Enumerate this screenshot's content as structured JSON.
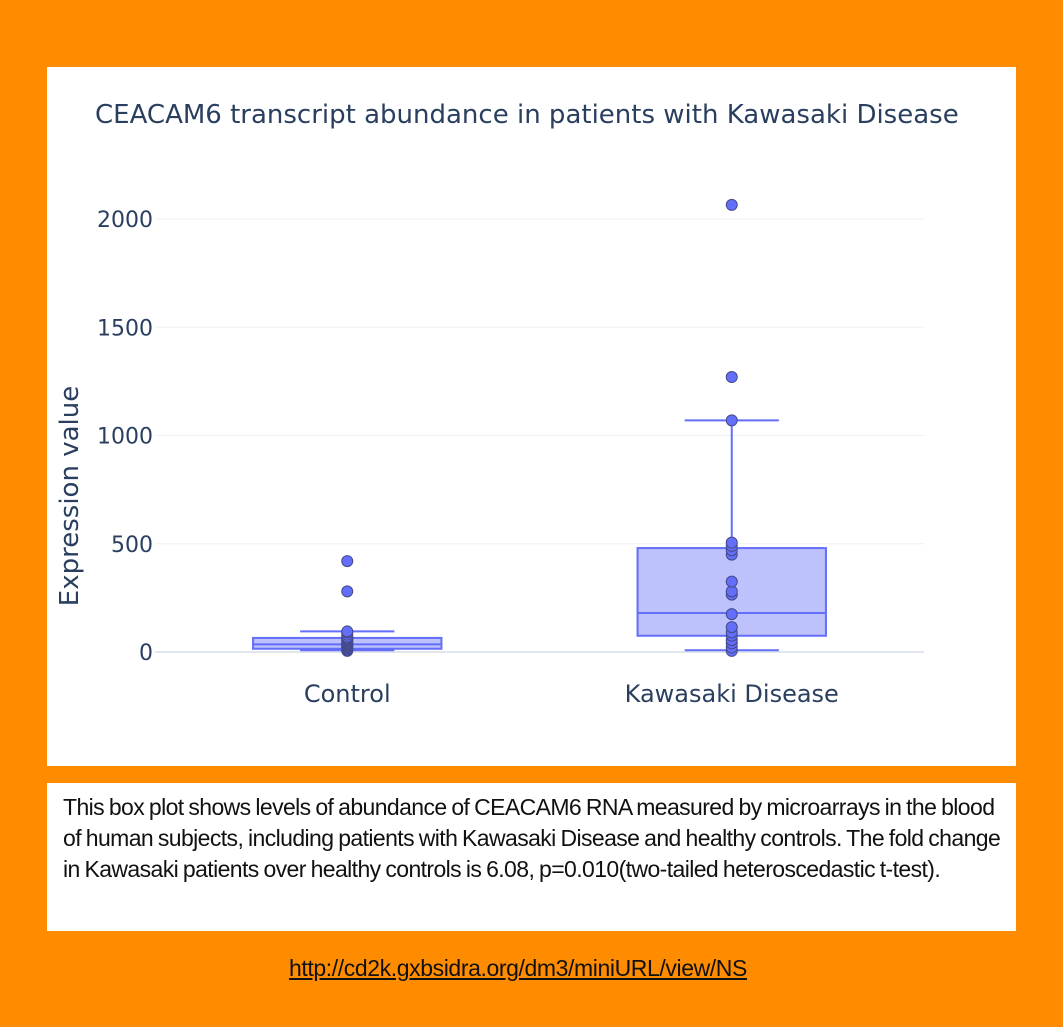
{
  "chart_data": {
    "type": "box",
    "title": "CEACAM6 transcript abundance in patients with Kawasaki Disease",
    "xlabel": "",
    "ylabel": "Expression value",
    "ylim": [
      -5,
      2200
    ],
    "yticks": [
      0,
      500,
      1000,
      1500,
      2000
    ],
    "grid": true,
    "legend": "none",
    "color": "#636efa",
    "fill_color": "#b1b6fc",
    "categories": [
      "Control",
      "Kawasaki Disease"
    ],
    "series": [
      {
        "category": "Control",
        "min": 8,
        "q1": 15,
        "median": 35,
        "q3": 65,
        "max": 95,
        "points": [
          5,
          10,
          15,
          20,
          25,
          30,
          35,
          40,
          45,
          50,
          55,
          60,
          65,
          70,
          80,
          90,
          95,
          280,
          420
        ]
      },
      {
        "category": "Kawasaki Disease",
        "min": 8,
        "q1": 75,
        "median": 180,
        "q3": 480,
        "max": 1070,
        "points": [
          5,
          20,
          40,
          55,
          75,
          90,
          115,
          175,
          265,
          280,
          325,
          450,
          470,
          490,
          505,
          1070,
          1270,
          2065
        ]
      }
    ]
  },
  "caption": {
    "text": "This box plot shows levels of abundance of CEACAM6 RNA measured by microarrays in the blood of human subjects, including patients with Kawasaki Disease and healthy controls. The fold change in Kawasaki patients over healthy controls is 6.08, p=0.010(two-tailed heteroscedastic t-test)."
  },
  "footer": {
    "url": "http://cd2k.gxbsidra.org/dm3/miniURL/view/NS"
  }
}
